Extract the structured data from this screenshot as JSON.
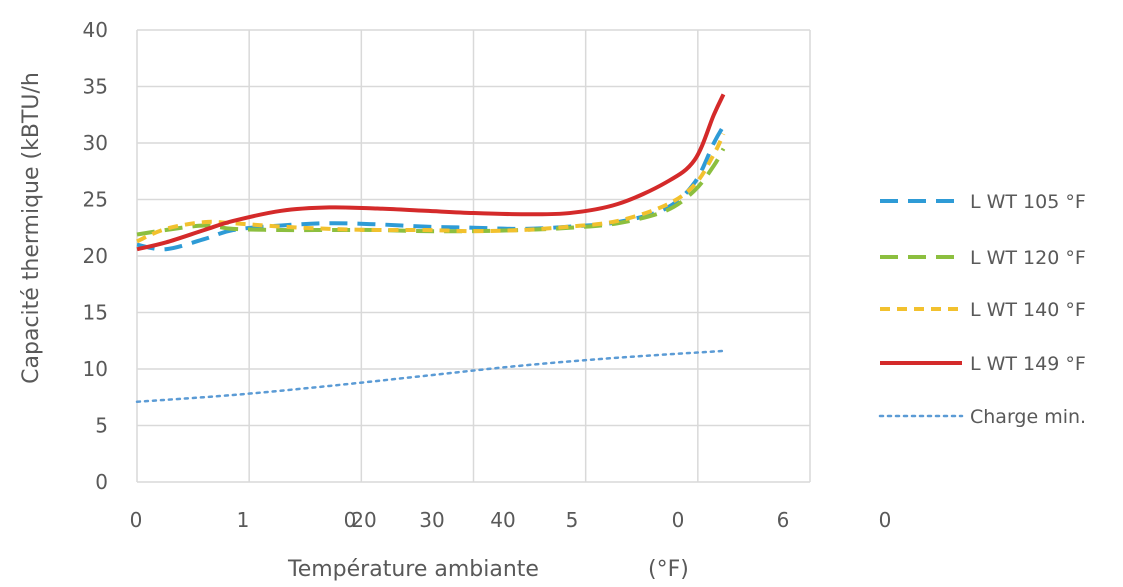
{
  "chart_data": {
    "type": "line",
    "ylabel": "Capacité thermique  (kBTU/h",
    "xlabel": "Température ambiante",
    "xlabel_unit": "(°F)",
    "ylim": [
      0,
      40
    ],
    "yticks": [
      "0",
      "5",
      "10",
      "15",
      "20",
      "25",
      "30",
      "35",
      "40"
    ],
    "xtick_labels": [
      "0",
      "1",
      "0",
      "20",
      "30",
      "40",
      "5",
      "0",
      "6",
      "0"
    ],
    "xlim": [
      -10,
      60
    ],
    "grid": true,
    "legend_position": "right",
    "series": [
      {
        "name": "L WT 105 °F",
        "style": "dashed",
        "color": "#2e9bd6",
        "points": [
          [
            -10,
            21.0
          ],
          [
            -7,
            20.6
          ],
          [
            -3,
            21.5
          ],
          [
            0,
            22.3
          ],
          [
            5,
            22.7
          ],
          [
            10,
            22.9
          ],
          [
            15,
            22.8
          ],
          [
            20,
            22.6
          ],
          [
            25,
            22.5
          ],
          [
            30,
            22.4
          ],
          [
            35,
            22.6
          ],
          [
            40,
            23.0
          ],
          [
            45,
            24.2
          ],
          [
            48,
            26.5
          ],
          [
            50,
            30.0
          ],
          [
            51,
            31.5
          ]
        ]
      },
      {
        "name": "L WT 120 °F",
        "style": "dashed",
        "color": "#8cbf3f",
        "points": [
          [
            -10,
            21.9
          ],
          [
            -7,
            22.3
          ],
          [
            -3,
            22.7
          ],
          [
            0,
            22.4
          ],
          [
            5,
            22.3
          ],
          [
            10,
            22.3
          ],
          [
            15,
            22.3
          ],
          [
            20,
            22.2
          ],
          [
            25,
            22.2
          ],
          [
            30,
            22.3
          ],
          [
            35,
            22.5
          ],
          [
            40,
            22.9
          ],
          [
            45,
            24.0
          ],
          [
            48,
            25.8
          ],
          [
            50,
            28.0
          ],
          [
            51,
            29.5
          ]
        ]
      },
      {
        "name": "L WT 140 °F",
        "style": "short-dashed",
        "color": "#f2c12e",
        "points": [
          [
            -10,
            21.3
          ],
          [
            -7,
            22.4
          ],
          [
            -3,
            23.0
          ],
          [
            0,
            22.9
          ],
          [
            5,
            22.6
          ],
          [
            10,
            22.4
          ],
          [
            15,
            22.3
          ],
          [
            20,
            22.3
          ],
          [
            25,
            22.2
          ],
          [
            30,
            22.3
          ],
          [
            35,
            22.6
          ],
          [
            40,
            23.1
          ],
          [
            45,
            24.5
          ],
          [
            48,
            26.3
          ],
          [
            50,
            29.0
          ],
          [
            51,
            30.8
          ]
        ]
      },
      {
        "name": "L WT 149 °F",
        "style": "solid",
        "color": "#d42a2a",
        "points": [
          [
            -10,
            20.6
          ],
          [
            -7,
            21.2
          ],
          [
            -3,
            22.3
          ],
          [
            0,
            23.1
          ],
          [
            5,
            24.0
          ],
          [
            10,
            24.3
          ],
          [
            15,
            24.2
          ],
          [
            20,
            24.0
          ],
          [
            25,
            23.8
          ],
          [
            30,
            23.7
          ],
          [
            35,
            23.8
          ],
          [
            40,
            24.6
          ],
          [
            45,
            26.5
          ],
          [
            48,
            28.5
          ],
          [
            50,
            32.5
          ],
          [
            51,
            34.3
          ]
        ]
      },
      {
        "name": "Charge min.",
        "style": "dotted",
        "color": "#5b9bd5",
        "points": [
          [
            -10,
            7.1
          ],
          [
            0,
            7.7
          ],
          [
            10,
            8.5
          ],
          [
            20,
            9.4
          ],
          [
            30,
            10.3
          ],
          [
            40,
            11.0
          ],
          [
            51,
            11.6
          ]
        ]
      }
    ]
  }
}
